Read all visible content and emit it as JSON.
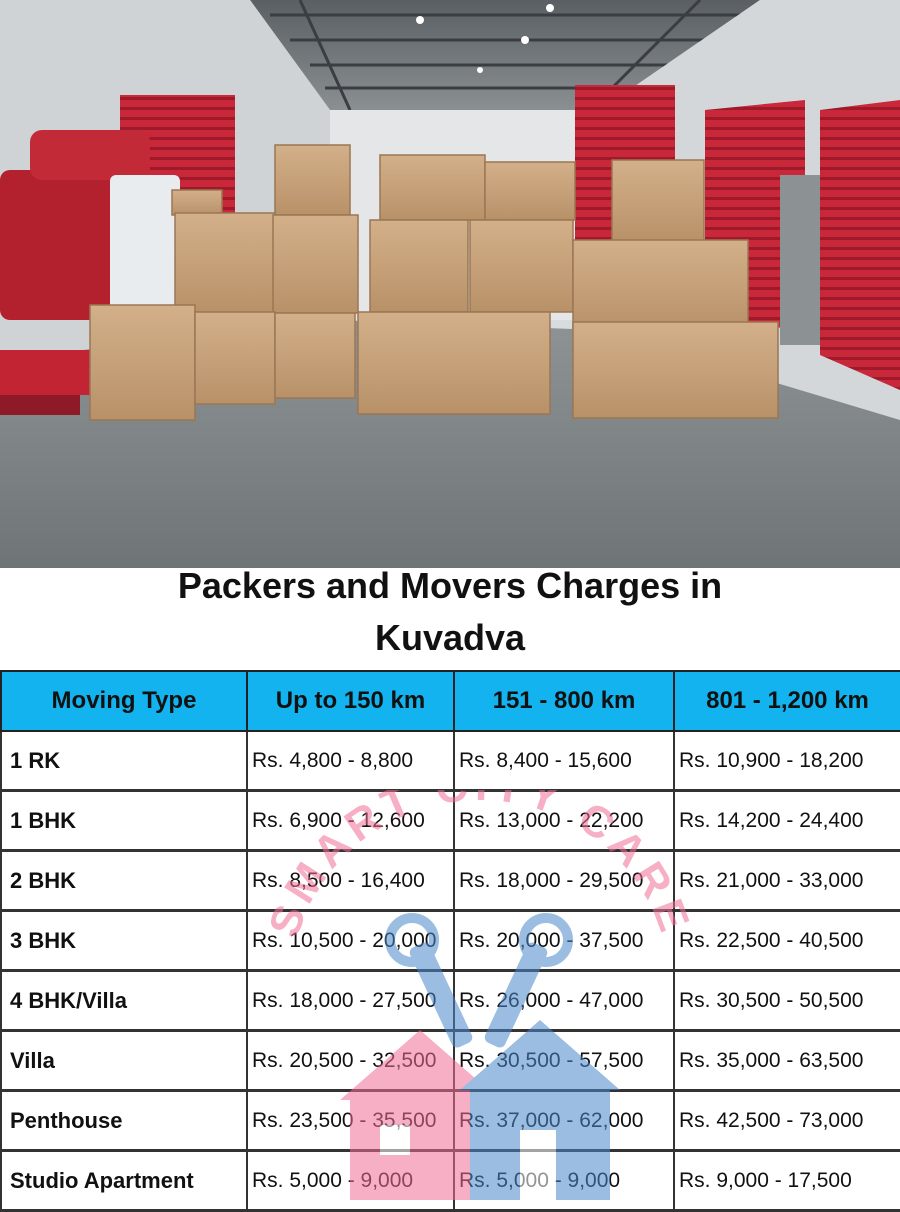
{
  "title": {
    "line1": "Packers and Movers Charges in",
    "line2": "Kuvadva"
  },
  "table": {
    "headers": [
      "Moving Type",
      "Up to 150 km",
      "151 - 800 km",
      "801 - 1,200 km"
    ],
    "rows": [
      {
        "type": "1 RK",
        "c1": "Rs. 4,800 - 8,800",
        "c2": "Rs. 8,400 - 15,600",
        "c3": "Rs. 10,900 - 18,200"
      },
      {
        "type": "1 BHK",
        "c1": "Rs. 6,900 - 12,600",
        "c2": "Rs. 13,000 - 22,200",
        "c3": "Rs. 14,200 - 24,400"
      },
      {
        "type": "2 BHK",
        "c1": "Rs. 8,500 - 16,400",
        "c2": "Rs. 18,000 - 29,500",
        "c3": "Rs. 21,000 - 33,000"
      },
      {
        "type": "3 BHK",
        "c1": "Rs. 10,500 - 20,000",
        "c2": "Rs. 20,000 - 37,500",
        "c3": "Rs. 22,500 - 40,500"
      },
      {
        "type": "4 BHK/Villa",
        "c1": "Rs. 18,000 - 27,500",
        "c2": "Rs. 26,000 - 47,000",
        "c3": "Rs. 30,500 - 50,500"
      },
      {
        "type": "Villa",
        "c1": "Rs. 20,500 - 32,500",
        "c2": "Rs. 30,500 - 57,500",
        "c3": "Rs. 35,000 - 63,500"
      },
      {
        "type": "Penthouse",
        "c1": "Rs. 23,500 - 35,500",
        "c2": "Rs. 37,000 - 62,000",
        "c3": "Rs. 42,500 - 73,000"
      },
      {
        "type": "Studio Apartment",
        "c1": "Rs. 5,000 - 9,000",
        "c2": "Rs. 5,000 - 9,000",
        "c3": "Rs. 9,000 - 17,500"
      }
    ]
  },
  "watermark": {
    "text": "SMART CITY CARE",
    "icon": "house-with-tools-logo"
  },
  "colors": {
    "header_bg": "#12b3ee",
    "watermark_pink": "#ef6e95",
    "watermark_blue": "#4a88c9",
    "shutter_red": "#c8283a",
    "box_tan": "#c9a47a"
  }
}
